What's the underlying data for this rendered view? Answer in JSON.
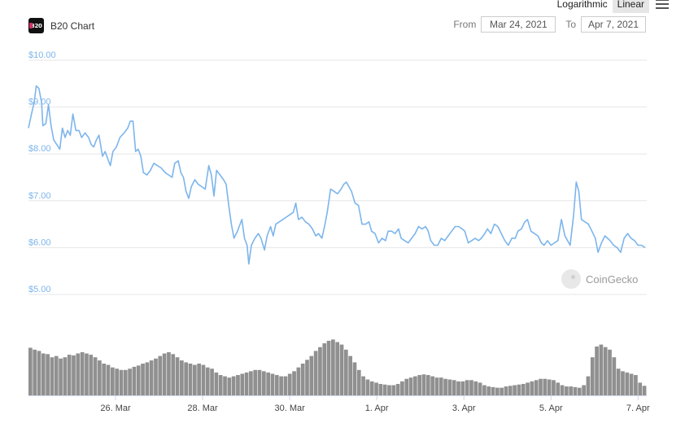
{
  "header": {
    "title": "B20 Chart",
    "logo_text": "B20",
    "scale_options": [
      "Logarithmic",
      "Linear"
    ],
    "scale_selected": "Linear",
    "from_label": "From",
    "from_value": "Mar 24, 2021",
    "to_label": "To",
    "to_value": "Apr 7, 2021"
  },
  "watermark": "CoinGecko",
  "colors": {
    "line": "#7cb5ec",
    "volume": "#909090",
    "grid": "#e6e6e6"
  },
  "chart_data": {
    "type": "line",
    "title": "",
    "xlabel": "",
    "ylabel": "",
    "ylim": [
      5,
      10
    ],
    "y_ticks": [
      "$10.00",
      "$9.00",
      "$8.00",
      "$7.00",
      "$6.00",
      "$5.00"
    ],
    "x_ticks": [
      "26. Mar",
      "28. Mar",
      "30. Mar",
      "1. Apr",
      "3. Apr",
      "5. Apr",
      "7. Apr"
    ],
    "x_tick_days": [
      2,
      4,
      6,
      8,
      10,
      12,
      14
    ],
    "x_range_days": [
      0.0,
      14.2
    ],
    "grid": true,
    "legend": "none",
    "series": [
      {
        "values": [
          [
            0.0,
            8.55
          ],
          [
            0.08,
            8.9
          ],
          [
            0.13,
            9.1
          ],
          [
            0.18,
            9.45
          ],
          [
            0.24,
            9.4
          ],
          [
            0.3,
            9.1
          ],
          [
            0.33,
            8.6
          ],
          [
            0.4,
            8.65
          ],
          [
            0.46,
            9.05
          ],
          [
            0.52,
            8.6
          ],
          [
            0.58,
            8.3
          ],
          [
            0.65,
            8.2
          ],
          [
            0.72,
            8.1
          ],
          [
            0.78,
            8.55
          ],
          [
            0.84,
            8.35
          ],
          [
            0.9,
            8.5
          ],
          [
            0.96,
            8.4
          ],
          [
            1.02,
            8.85
          ],
          [
            1.09,
            8.5
          ],
          [
            1.16,
            8.5
          ],
          [
            1.22,
            8.35
          ],
          [
            1.3,
            8.45
          ],
          [
            1.38,
            8.35
          ],
          [
            1.44,
            8.2
          ],
          [
            1.5,
            8.15
          ],
          [
            1.56,
            8.3
          ],
          [
            1.62,
            8.4
          ],
          [
            1.7,
            7.95
          ],
          [
            1.76,
            8.05
          ],
          [
            1.82,
            7.9
          ],
          [
            1.88,
            7.75
          ],
          [
            1.94,
            8.05
          ],
          [
            2.02,
            8.15
          ],
          [
            2.1,
            8.35
          ],
          [
            2.2,
            8.45
          ],
          [
            2.28,
            8.55
          ],
          [
            2.34,
            8.7
          ],
          [
            2.4,
            8.7
          ],
          [
            2.46,
            8.05
          ],
          [
            2.52,
            8.1
          ],
          [
            2.58,
            7.95
          ],
          [
            2.64,
            7.6
          ],
          [
            2.72,
            7.55
          ],
          [
            2.8,
            7.65
          ],
          [
            2.88,
            7.8
          ],
          [
            2.96,
            7.75
          ],
          [
            3.05,
            7.7
          ],
          [
            3.14,
            7.6
          ],
          [
            3.22,
            7.55
          ],
          [
            3.3,
            7.5
          ],
          [
            3.36,
            7.8
          ],
          [
            3.44,
            7.85
          ],
          [
            3.5,
            7.6
          ],
          [
            3.56,
            7.5
          ],
          [
            3.62,
            7.2
          ],
          [
            3.68,
            7.05
          ],
          [
            3.74,
            7.3
          ],
          [
            3.82,
            7.45
          ],
          [
            3.9,
            7.35
          ],
          [
            3.98,
            7.3
          ],
          [
            4.06,
            7.25
          ],
          [
            4.14,
            7.75
          ],
          [
            4.2,
            7.55
          ],
          [
            4.26,
            7.1
          ],
          [
            4.32,
            7.65
          ],
          [
            4.4,
            7.55
          ],
          [
            4.48,
            7.45
          ],
          [
            4.54,
            7.35
          ],
          [
            4.6,
            6.9
          ],
          [
            4.66,
            6.5
          ],
          [
            4.72,
            6.2
          ],
          [
            4.8,
            6.35
          ],
          [
            4.86,
            6.5
          ],
          [
            4.9,
            6.6
          ],
          [
            4.96,
            6.2
          ],
          [
            5.02,
            6.05
          ],
          [
            5.06,
            5.65
          ],
          [
            5.12,
            6.05
          ],
          [
            5.2,
            6.2
          ],
          [
            5.28,
            6.3
          ],
          [
            5.34,
            6.2
          ],
          [
            5.42,
            5.95
          ],
          [
            5.48,
            6.25
          ],
          [
            5.56,
            6.45
          ],
          [
            5.62,
            6.25
          ],
          [
            5.68,
            6.5
          ],
          [
            5.76,
            6.55
          ],
          [
            5.84,
            6.6
          ],
          [
            5.92,
            6.65
          ],
          [
            6.0,
            6.7
          ],
          [
            6.08,
            6.75
          ],
          [
            6.14,
            6.95
          ],
          [
            6.2,
            6.6
          ],
          [
            6.28,
            6.65
          ],
          [
            6.36,
            6.55
          ],
          [
            6.44,
            6.5
          ],
          [
            6.52,
            6.4
          ],
          [
            6.6,
            6.25
          ],
          [
            6.66,
            6.3
          ],
          [
            6.74,
            6.2
          ],
          [
            6.8,
            6.45
          ],
          [
            6.86,
            6.75
          ],
          [
            6.94,
            7.25
          ],
          [
            7.02,
            7.2
          ],
          [
            7.1,
            7.15
          ],
          [
            7.18,
            7.25
          ],
          [
            7.24,
            7.35
          ],
          [
            7.3,
            7.4
          ],
          [
            7.36,
            7.3
          ],
          [
            7.42,
            7.2
          ],
          [
            7.5,
            6.95
          ],
          [
            7.58,
            6.9
          ],
          [
            7.66,
            6.5
          ],
          [
            7.74,
            6.5
          ],
          [
            7.82,
            6.55
          ],
          [
            7.88,
            6.35
          ],
          [
            7.96,
            6.3
          ],
          [
            8.04,
            6.1
          ],
          [
            8.12,
            6.2
          ],
          [
            8.2,
            6.15
          ],
          [
            8.26,
            6.35
          ],
          [
            8.34,
            6.35
          ],
          [
            8.42,
            6.3
          ],
          [
            8.5,
            6.4
          ],
          [
            8.56,
            6.2
          ],
          [
            8.64,
            6.15
          ],
          [
            8.72,
            6.1
          ],
          [
            8.8,
            6.2
          ],
          [
            8.88,
            6.3
          ],
          [
            8.96,
            6.45
          ],
          [
            9.04,
            6.4
          ],
          [
            9.12,
            6.45
          ],
          [
            9.18,
            6.35
          ],
          [
            9.24,
            6.15
          ],
          [
            9.32,
            6.05
          ],
          [
            9.4,
            6.05
          ],
          [
            9.48,
            6.2
          ],
          [
            9.56,
            6.15
          ],
          [
            9.64,
            6.25
          ],
          [
            9.72,
            6.35
          ],
          [
            9.8,
            6.45
          ],
          [
            9.88,
            6.45
          ],
          [
            9.96,
            6.4
          ],
          [
            10.02,
            6.35
          ],
          [
            10.1,
            6.1
          ],
          [
            10.18,
            6.15
          ],
          [
            10.26,
            6.2
          ],
          [
            10.34,
            6.15
          ],
          [
            10.4,
            6.2
          ],
          [
            10.48,
            6.3
          ],
          [
            10.54,
            6.4
          ],
          [
            10.62,
            6.3
          ],
          [
            10.7,
            6.5
          ],
          [
            10.78,
            6.45
          ],
          [
            10.86,
            6.3
          ],
          [
            10.94,
            6.15
          ],
          [
            11.02,
            6.05
          ],
          [
            11.1,
            6.2
          ],
          [
            11.18,
            6.2
          ],
          [
            11.24,
            6.35
          ],
          [
            11.32,
            6.4
          ],
          [
            11.4,
            6.55
          ],
          [
            11.46,
            6.6
          ],
          [
            11.54,
            6.35
          ],
          [
            11.62,
            6.3
          ],
          [
            11.7,
            6.25
          ],
          [
            11.78,
            6.1
          ],
          [
            11.84,
            6.05
          ],
          [
            11.92,
            6.15
          ],
          [
            12.0,
            6.05
          ],
          [
            12.08,
            6.1
          ],
          [
            12.16,
            6.15
          ],
          [
            12.24,
            6.6
          ],
          [
            12.32,
            6.25
          ],
          [
            12.38,
            6.15
          ],
          [
            12.44,
            6.05
          ],
          [
            12.52,
            6.7
          ],
          [
            12.58,
            7.4
          ],
          [
            12.64,
            7.2
          ],
          [
            12.7,
            6.6
          ],
          [
            12.78,
            6.55
          ],
          [
            12.86,
            6.5
          ],
          [
            12.94,
            6.35
          ],
          [
            13.02,
            6.2
          ],
          [
            13.08,
            5.9
          ],
          [
            13.16,
            6.1
          ],
          [
            13.24,
            6.25
          ],
          [
            13.3,
            6.2
          ],
          [
            13.36,
            6.15
          ],
          [
            13.44,
            6.05
          ],
          [
            13.52,
            6.0
          ],
          [
            13.6,
            5.9
          ],
          [
            13.68,
            6.2
          ],
          [
            13.76,
            6.3
          ],
          [
            13.84,
            6.2
          ],
          [
            13.92,
            6.15
          ],
          [
            14.0,
            6.05
          ],
          [
            14.08,
            6.05
          ],
          [
            14.16,
            6.0
          ]
        ]
      }
    ],
    "volume": [
      0.75,
      0.72,
      0.7,
      0.66,
      0.65,
      0.6,
      0.62,
      0.58,
      0.6,
      0.64,
      0.63,
      0.66,
      0.68,
      0.66,
      0.64,
      0.6,
      0.55,
      0.5,
      0.48,
      0.44,
      0.42,
      0.4,
      0.4,
      0.42,
      0.45,
      0.47,
      0.5,
      0.52,
      0.55,
      0.58,
      0.62,
      0.66,
      0.68,
      0.65,
      0.6,
      0.55,
      0.52,
      0.5,
      0.48,
      0.5,
      0.48,
      0.44,
      0.42,
      0.36,
      0.32,
      0.3,
      0.28,
      0.3,
      0.32,
      0.34,
      0.36,
      0.38,
      0.4,
      0.4,
      0.38,
      0.36,
      0.34,
      0.32,
      0.3,
      0.3,
      0.34,
      0.38,
      0.44,
      0.5,
      0.56,
      0.62,
      0.7,
      0.76,
      0.82,
      0.86,
      0.88,
      0.84,
      0.8,
      0.72,
      0.62,
      0.52,
      0.4,
      0.3,
      0.25,
      0.22,
      0.2,
      0.18,
      0.17,
      0.16,
      0.16,
      0.18,
      0.22,
      0.26,
      0.28,
      0.3,
      0.32,
      0.33,
      0.32,
      0.3,
      0.28,
      0.28,
      0.26,
      0.25,
      0.24,
      0.22,
      0.22,
      0.24,
      0.24,
      0.22,
      0.2,
      0.16,
      0.14,
      0.13,
      0.12,
      0.12,
      0.14,
      0.15,
      0.16,
      0.17,
      0.18,
      0.2,
      0.22,
      0.24,
      0.26,
      0.26,
      0.25,
      0.24,
      0.2,
      0.16,
      0.14,
      0.14,
      0.13,
      0.12,
      0.16,
      0.3,
      0.6,
      0.77,
      0.8,
      0.76,
      0.72,
      0.6,
      0.42,
      0.38,
      0.36,
      0.34,
      0.32,
      0.2,
      0.15
    ]
  }
}
